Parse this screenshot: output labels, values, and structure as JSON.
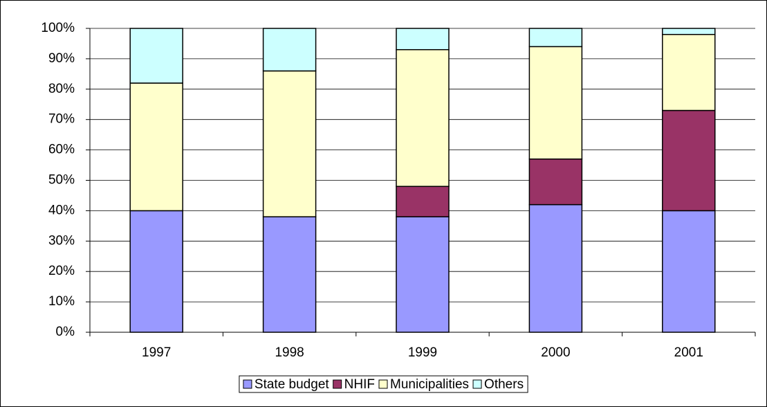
{
  "chart_data": {
    "type": "stacked_bar",
    "categories": [
      "1997",
      "1998",
      "1999",
      "2000",
      "2001"
    ],
    "series": [
      {
        "name": "State budget",
        "color": "#9999ff",
        "values": [
          40,
          38,
          38,
          42,
          40
        ]
      },
      {
        "name": "NHIF",
        "color": "#993366",
        "values": [
          0,
          0,
          10,
          15,
          33
        ]
      },
      {
        "name": "Municipalities",
        "color": "#ffffcc",
        "values": [
          42,
          48,
          45,
          37,
          25
        ]
      },
      {
        "name": "Others",
        "color": "#ccffff",
        "values": [
          18,
          14,
          7,
          6,
          2
        ]
      }
    ],
    "ylim": [
      0,
      100
    ],
    "yticks": [
      {
        "value": 0,
        "label": "0%"
      },
      {
        "value": 10,
        "label": "10%"
      },
      {
        "value": 20,
        "label": "20%"
      },
      {
        "value": 30,
        "label": "30%"
      },
      {
        "value": 40,
        "label": "40%"
      },
      {
        "value": 50,
        "label": "50%"
      },
      {
        "value": 60,
        "label": "60%"
      },
      {
        "value": 70,
        "label": "70%"
      },
      {
        "value": 80,
        "label": "80%"
      },
      {
        "value": 90,
        "label": "90%"
      },
      {
        "value": 100,
        "label": "100%"
      }
    ],
    "grid": true,
    "legend": "bottom"
  }
}
